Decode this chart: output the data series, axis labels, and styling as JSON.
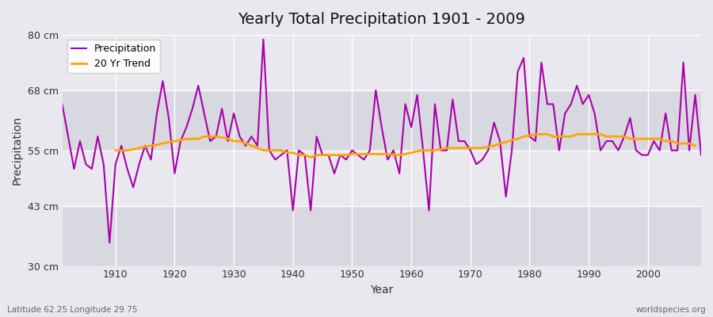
{
  "title": "Yearly Total Precipitation 1901 - 2009",
  "xlabel": "Year",
  "ylabel": "Precipitation",
  "bottom_left_label": "Latitude 62.25 Longitude 29.75",
  "bottom_right_label": "worldspecies.org",
  "ylim": [
    30,
    80
  ],
  "yticks": [
    30,
    43,
    55,
    68,
    80
  ],
  "ytick_labels": [
    "30 cm",
    "43 cm",
    "55 cm",
    "68 cm",
    "80 cm"
  ],
  "xlim": [
    1901,
    2009
  ],
  "bg_color": "#e8e8ee",
  "plot_bg_color": "#e8e8ee",
  "precip_color": "#aa00aa",
  "trend_color": "#ffa500",
  "precip_linewidth": 1.5,
  "trend_linewidth": 2.0,
  "years": [
    1901,
    1902,
    1903,
    1904,
    1905,
    1906,
    1907,
    1908,
    1909,
    1910,
    1911,
    1912,
    1913,
    1914,
    1915,
    1916,
    1917,
    1918,
    1919,
    1920,
    1921,
    1922,
    1923,
    1924,
    1925,
    1926,
    1927,
    1928,
    1929,
    1930,
    1931,
    1932,
    1933,
    1934,
    1935,
    1936,
    1937,
    1938,
    1939,
    1940,
    1941,
    1942,
    1943,
    1944,
    1945,
    1946,
    1947,
    1948,
    1949,
    1950,
    1951,
    1952,
    1953,
    1954,
    1955,
    1956,
    1957,
    1958,
    1959,
    1960,
    1961,
    1962,
    1963,
    1964,
    1965,
    1966,
    1967,
    1968,
    1969,
    1970,
    1971,
    1972,
    1973,
    1974,
    1975,
    1976,
    1977,
    1978,
    1979,
    1980,
    1981,
    1982,
    1983,
    1984,
    1985,
    1986,
    1987,
    1988,
    1989,
    1990,
    1991,
    1992,
    1993,
    1994,
    1995,
    1996,
    1997,
    1998,
    1999,
    2000,
    2001,
    2002,
    2003,
    2004,
    2005,
    2006,
    2007,
    2008,
    2009
  ],
  "precip": [
    65,
    58,
    51,
    57,
    52,
    51,
    58,
    52,
    35,
    52,
    56,
    51,
    47,
    52,
    56,
    53,
    63,
    70,
    62,
    50,
    57,
    60,
    64,
    69,
    63,
    57,
    58,
    64,
    57,
    63,
    58,
    56,
    58,
    56,
    79,
    55,
    53,
    54,
    55,
    42,
    55,
    54,
    42,
    58,
    54,
    54,
    50,
    54,
    53,
    55,
    54,
    53,
    55,
    68,
    60,
    53,
    55,
    50,
    65,
    60,
    67,
    55,
    42,
    65,
    55,
    55,
    66,
    57,
    57,
    55,
    52,
    53,
    55,
    61,
    57,
    45,
    55,
    72,
    75,
    58,
    57,
    74,
    65,
    65,
    55,
    63,
    65,
    69,
    65,
    67,
    63,
    55,
    57,
    57,
    55,
    58,
    62,
    55,
    54,
    54,
    57,
    55,
    63,
    55,
    55,
    74,
    55,
    67,
    54
  ],
  "trend_start": 1910,
  "trend": [
    55.0,
    55.0,
    55.0,
    55.2,
    55.5,
    55.8,
    56.0,
    56.2,
    56.5,
    56.8,
    57.0,
    57.2,
    57.5,
    57.5,
    57.5,
    58.0,
    58.0,
    58.0,
    57.8,
    57.5,
    57.0,
    57.0,
    56.5,
    56.0,
    55.5,
    55.0,
    55.0,
    55.0,
    55.0,
    54.5,
    54.5,
    54.0,
    54.0,
    53.5,
    54.0,
    54.0,
    54.0,
    54.0,
    54.0,
    54.0,
    54.2,
    54.2,
    54.2,
    54.2,
    54.2,
    54.2,
    54.2,
    54.0,
    54.0,
    54.2,
    54.5,
    54.8,
    55.0,
    55.0,
    55.0,
    55.2,
    55.5,
    55.5,
    55.5,
    55.5,
    55.5,
    55.5,
    55.5,
    55.8,
    56.0,
    56.5,
    56.8,
    57.2,
    57.5,
    58.0,
    58.2,
    58.5,
    58.5,
    58.5,
    58.0,
    58.0,
    58.0,
    58.0,
    58.5,
    58.5,
    58.5,
    58.5,
    58.5,
    58.0,
    58.0,
    58.0,
    58.0,
    57.5,
    57.5,
    57.5,
    57.5,
    57.5,
    57.5,
    57.0,
    57.0,
    56.5,
    56.5,
    56.5,
    56.0
  ]
}
